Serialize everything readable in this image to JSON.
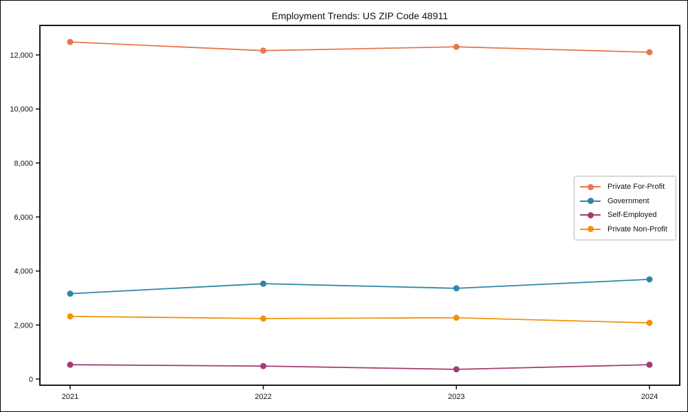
{
  "chart_data": {
    "type": "line",
    "title": "Employment Trends: US ZIP Code 48911",
    "x_labels": [
      "2021",
      "2022",
      "2023",
      "2024"
    ],
    "series": [
      {
        "name": "Private For-Profit",
        "color": "#E8764C",
        "values": [
          12480,
          12160,
          12300,
          12100
        ]
      },
      {
        "name": "Government",
        "color": "#2E86A8",
        "values": [
          3160,
          3530,
          3360,
          3690
        ]
      },
      {
        "name": "Self-Employed",
        "color": "#A23B72",
        "values": [
          530,
          480,
          360,
          530
        ]
      },
      {
        "name": "Private Non-Profit",
        "color": "#F0930A",
        "values": [
          2320,
          2240,
          2270,
          2080
        ]
      }
    ],
    "ytick_values": [
      0,
      2000,
      4000,
      6000,
      8000,
      10000,
      12000
    ],
    "ytick_labels": [
      "0",
      "2,000",
      "4,000",
      "6,000",
      "8,000",
      "10,000",
      "12,000"
    ],
    "ylim": [
      -230,
      13100
    ],
    "xlabel": "",
    "ylabel": "",
    "grid": false,
    "marker": "circle",
    "legend_position": "right-middle"
  }
}
